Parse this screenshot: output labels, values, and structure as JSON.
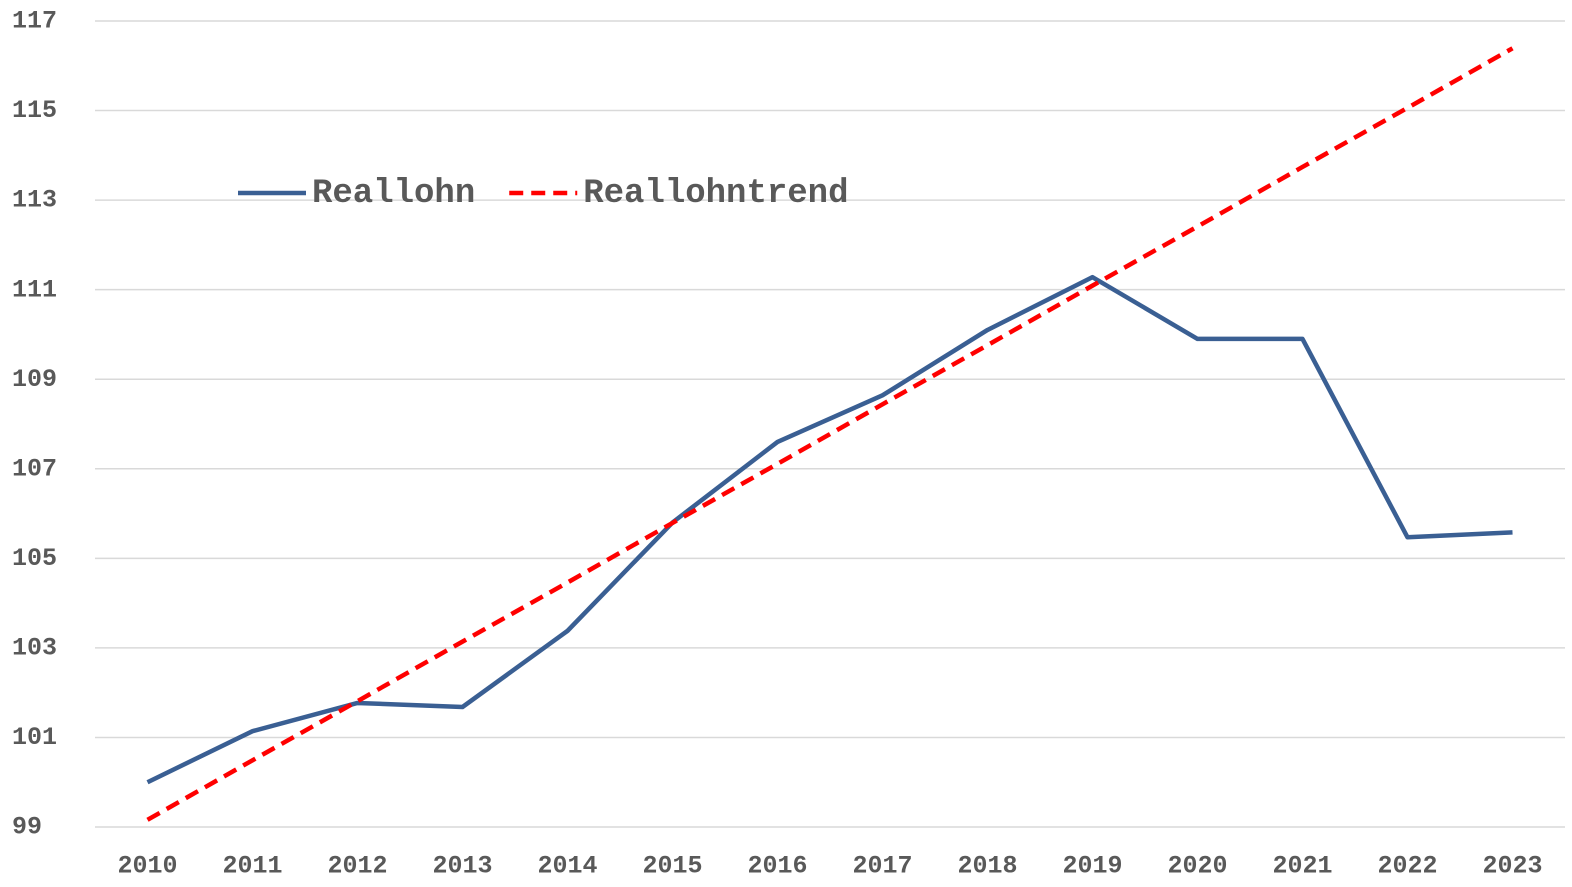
{
  "chart_data": {
    "type": "line",
    "categories": [
      "2010",
      "2011",
      "2012",
      "2013",
      "2014",
      "2015",
      "2016",
      "2017",
      "2018",
      "2019",
      "2020",
      "2021",
      "2022",
      "2023"
    ],
    "series": [
      {
        "name": "Reallohn",
        "color": "#3a5f93",
        "dash": false,
        "values": [
          100.0,
          101.14,
          101.77,
          101.68,
          103.38,
          105.8,
          107.6,
          108.64,
          110.1,
          111.28,
          109.9,
          109.9,
          105.47,
          105.58
        ]
      },
      {
        "name": "Reallohntrend",
        "color": "#ff0000",
        "dash": true,
        "values": [
          99.16,
          100.49,
          101.81,
          103.14,
          104.46,
          105.79,
          107.11,
          108.44,
          109.76,
          111.09,
          112.41,
          113.74,
          115.06,
          116.39
        ]
      }
    ],
    "ylim": [
      99,
      117
    ],
    "yticks": [
      99,
      101,
      103,
      105,
      107,
      109,
      111,
      113,
      115,
      117
    ],
    "grid": true
  }
}
